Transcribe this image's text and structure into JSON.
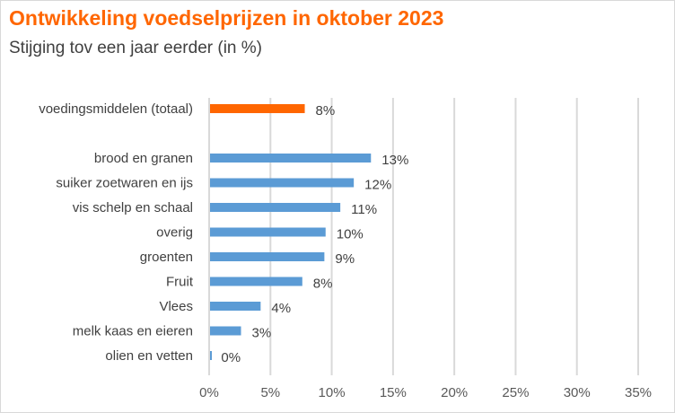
{
  "chart_data": {
    "type": "bar",
    "orientation": "horizontal",
    "title": "Ontwikkeling voedselprijzen in oktober 2023",
    "subtitle": "Stijging tov een jaar eerder (in %)",
    "categories": [
      "voedingsmiddelen (totaal)",
      "",
      "brood en granen",
      "suiker zoetwaren en ijs",
      "vis schelp en schaal",
      "overig",
      "groenten",
      "Fruit",
      "Vlees",
      "melk kaas en eieren",
      "olien en vetten"
    ],
    "values": [
      7.8,
      null,
      13.2,
      11.8,
      10.7,
      9.5,
      9.4,
      7.6,
      4.2,
      2.6,
      0.1
    ],
    "data_labels": [
      "8%",
      "",
      "13%",
      "12%",
      "11%",
      "10%",
      "9%",
      "8%",
      "4%",
      "3%",
      "0%"
    ],
    "bar_colors": [
      "#ff6600",
      null,
      "#5b9bd5",
      "#5b9bd5",
      "#5b9bd5",
      "#5b9bd5",
      "#5b9bd5",
      "#5b9bd5",
      "#5b9bd5",
      "#5b9bd5",
      "#5b9bd5"
    ],
    "xlim": [
      0,
      35
    ],
    "xticks": [
      0,
      5,
      10,
      15,
      20,
      25,
      30,
      35
    ],
    "xtick_labels": [
      "0%",
      "5%",
      "10%",
      "15%",
      "20%",
      "25%",
      "30%",
      "35%"
    ],
    "grid": "vertical",
    "legend": "none"
  }
}
